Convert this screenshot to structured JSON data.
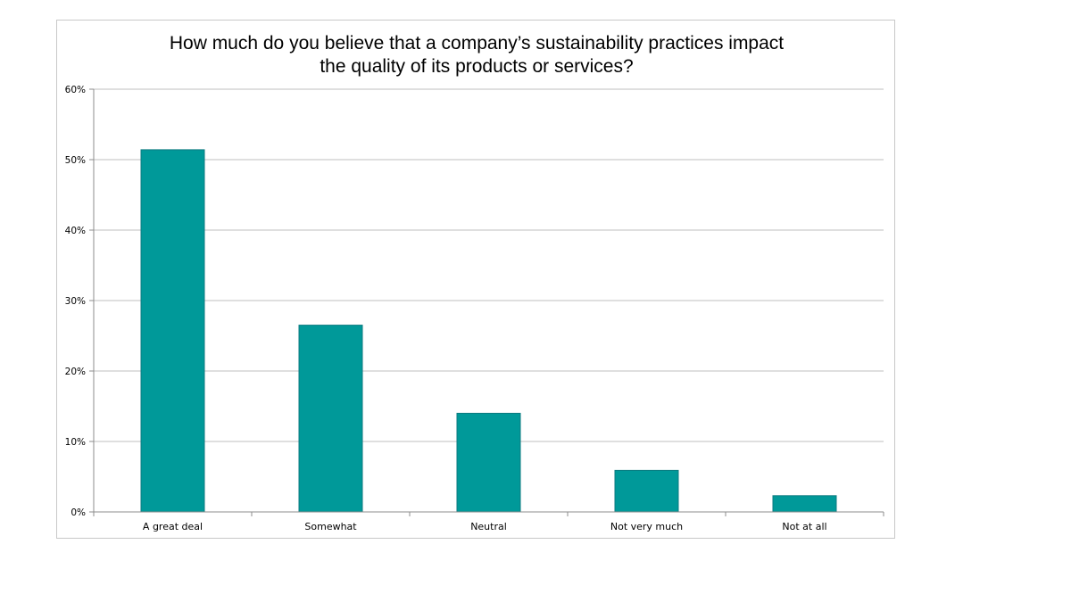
{
  "chart_data": {
    "type": "bar",
    "title_lines": [
      "How much do you believe that a company’s sustainability practices impact",
      "the quality of its products or services?"
    ],
    "categories": [
      "A great deal",
      "Somewhat",
      "Neutral",
      "Not very much",
      "Not at all"
    ],
    "values": [
      51.4,
      26.5,
      14.0,
      5.9,
      2.3
    ],
    "ylim": [
      0,
      60
    ],
    "yticks": [
      0,
      10,
      20,
      30,
      40,
      50,
      60
    ],
    "ytick_labels": [
      "0%",
      "10%",
      "20%",
      "30%",
      "40%",
      "50%",
      "60%"
    ],
    "grid": true,
    "legend": "none",
    "bar_color": "#009999",
    "bar_edge_color": "#0b7a80"
  }
}
